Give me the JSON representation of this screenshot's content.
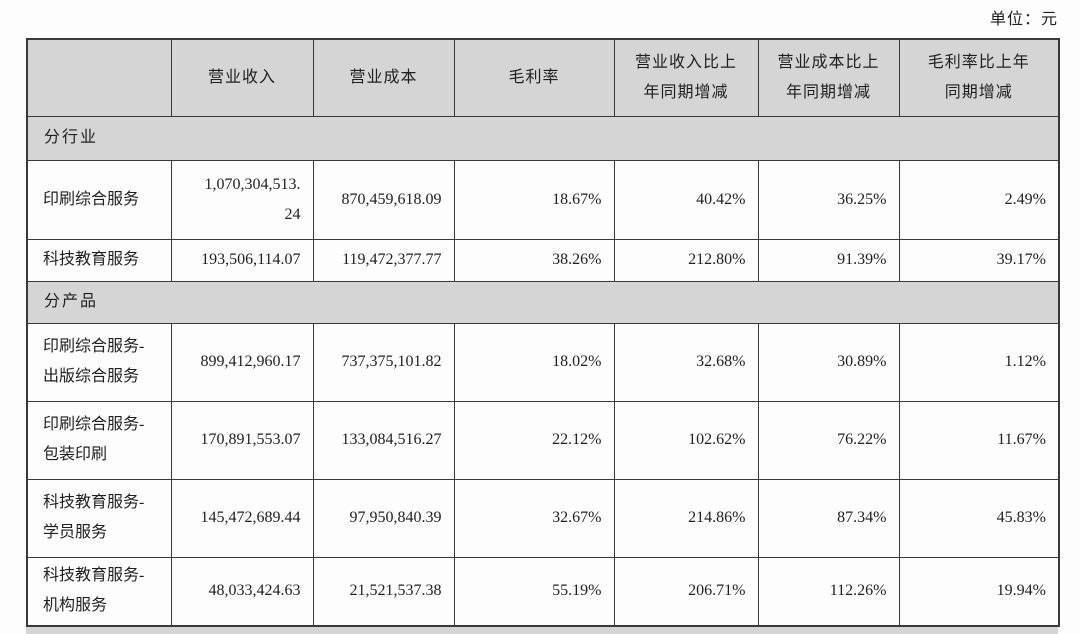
{
  "unit_label": "单位：元",
  "colors": {
    "section_fill": "#d5d5d5",
    "border": "#3a3a3a",
    "text": "#1f1f1f",
    "page_background": "#fdfdfd"
  },
  "table": {
    "columns": [
      {
        "key": "name",
        "lines": []
      },
      {
        "key": "revenue",
        "lines": [
          "营业收入"
        ]
      },
      {
        "key": "cost",
        "lines": [
          "营业成本"
        ]
      },
      {
        "key": "margin",
        "lines": [
          "毛利率"
        ]
      },
      {
        "key": "revenue-yoy",
        "lines": [
          "营业收入比上",
          "年同期增减"
        ]
      },
      {
        "key": "cost-yoy",
        "lines": [
          "营业成本比上",
          "年同期增减"
        ]
      },
      {
        "key": "margin-yoy",
        "lines": [
          "毛利率比上年",
          "同期增减"
        ]
      }
    ],
    "rows": [
      {
        "type": "section",
        "label": "分行业"
      },
      {
        "type": "data",
        "name": [
          "印刷综合服务"
        ],
        "cells": [
          [
            "1,070,304,513.",
            "24"
          ],
          [
            "870,459,618.09"
          ],
          [
            "18.67%"
          ],
          [
            "40.42%"
          ],
          [
            "36.25%"
          ],
          [
            "2.49%"
          ]
        ]
      },
      {
        "type": "data",
        "name": [
          "科技教育服务"
        ],
        "cells": [
          [
            "193,506,114.07"
          ],
          [
            "119,472,377.77"
          ],
          [
            "38.26%"
          ],
          [
            "212.80%"
          ],
          [
            "91.39%"
          ],
          [
            "39.17%"
          ]
        ]
      },
      {
        "type": "section",
        "label": "分产品"
      },
      {
        "type": "data",
        "name": [
          "印刷综合服务-",
          "出版综合服务"
        ],
        "cells": [
          [
            "899,412,960.17"
          ],
          [
            "737,375,101.82"
          ],
          [
            "18.02%"
          ],
          [
            "32.68%"
          ],
          [
            "30.89%"
          ],
          [
            "1.12%"
          ]
        ]
      },
      {
        "type": "data",
        "name": [
          "印刷综合服务-",
          "包装印刷"
        ],
        "cells": [
          [
            "170,891,553.07"
          ],
          [
            "133,084,516.27"
          ],
          [
            "22.12%"
          ],
          [
            "102.62%"
          ],
          [
            "76.22%"
          ],
          [
            "11.67%"
          ]
        ]
      },
      {
        "type": "data",
        "name": [
          "科技教育服务-",
          "学员服务"
        ],
        "cells": [
          [
            "145,472,689.44"
          ],
          [
            "97,950,840.39"
          ],
          [
            "32.67%"
          ],
          [
            "214.86%"
          ],
          [
            "87.34%"
          ],
          [
            "45.83%"
          ]
        ]
      },
      {
        "type": "data",
        "name": [
          "科技教育服务-",
          "机构服务"
        ],
        "cells": [
          [
            "48,033,424.63"
          ],
          [
            "21,521,537.38"
          ],
          [
            "55.19%"
          ],
          [
            "206.71%"
          ],
          [
            "112.26%"
          ],
          [
            "19.94%"
          ]
        ]
      }
    ]
  }
}
